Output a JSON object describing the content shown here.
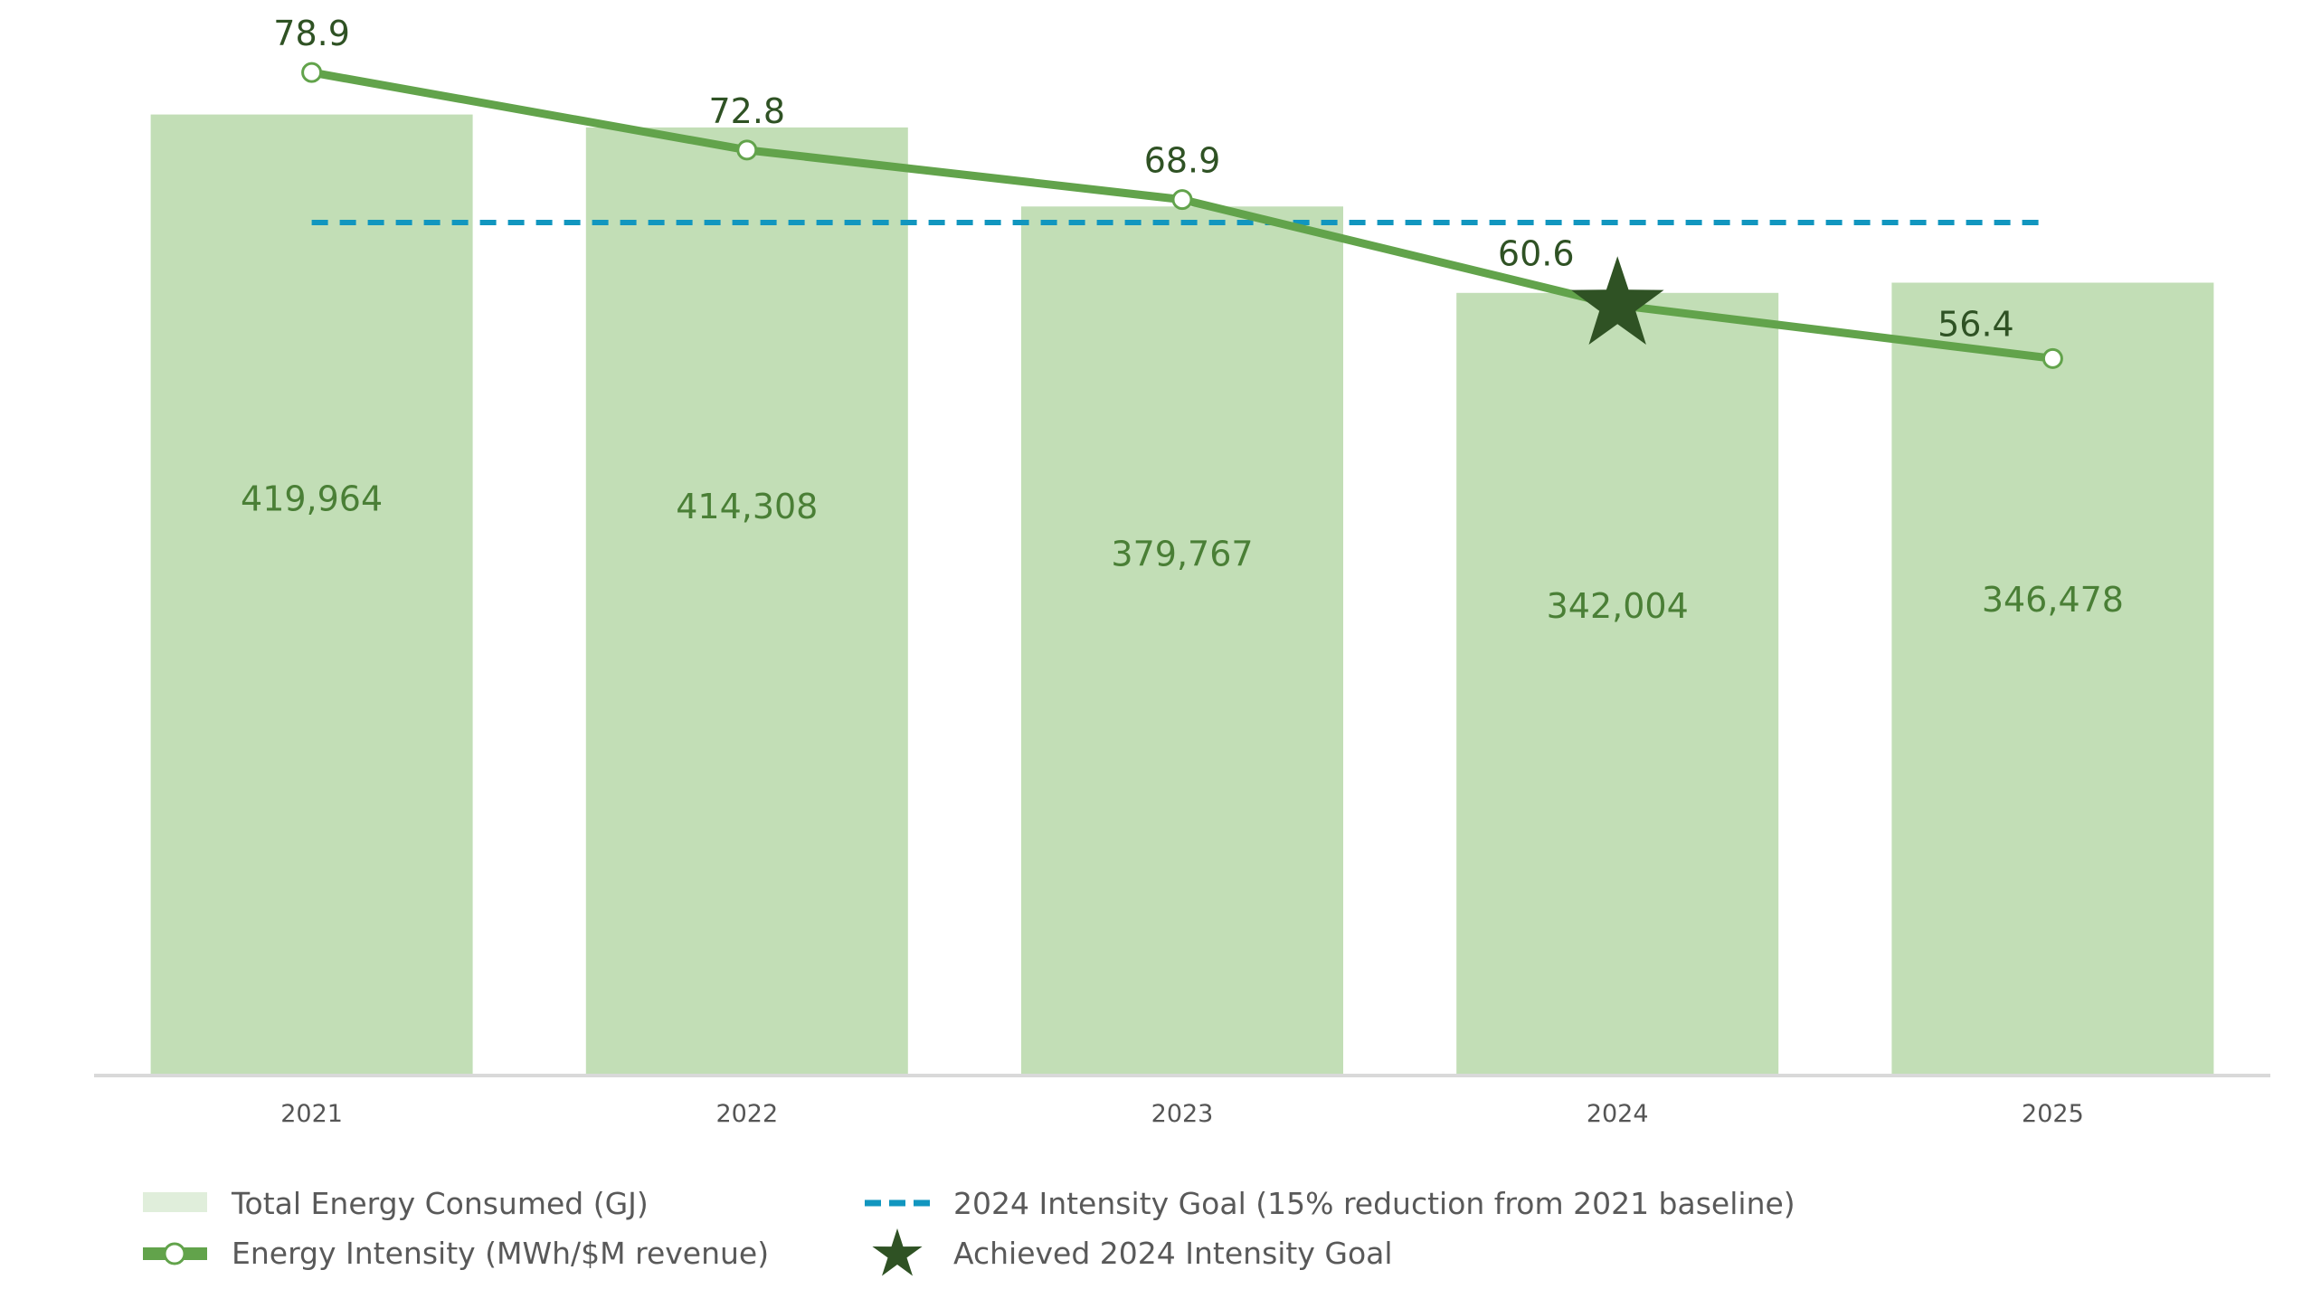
{
  "chart_data": {
    "type": "bar",
    "title": "",
    "xlabel": "",
    "ylabel": "",
    "categories": [
      "2021",
      "2022",
      "2023",
      "2024",
      "2025"
    ],
    "series": [
      {
        "name": "Total Energy Consumed (GJ)",
        "kind": "bar",
        "values": [
          419964,
          414308,
          379767,
          342004,
          346478
        ],
        "labels": [
          "419,964",
          "414,308",
          "379,767",
          "342,004",
          "346,478"
        ],
        "color": "#c2deb6"
      },
      {
        "name": "Energy Intensity (MWh/$M revenue)",
        "kind": "line",
        "values": [
          78.9,
          72.8,
          68.9,
          60.6,
          56.4
        ],
        "labels": [
          "78.9",
          "72.8",
          "68.9",
          "60.6",
          "56.4"
        ],
        "color": "#62a34b"
      },
      {
        "name": "2024 Intensity Goal (15% reduction from 2021 baseline)",
        "kind": "reference-line",
        "value": 67.1,
        "color": "#1196bf"
      },
      {
        "name": "Achieved 2024 Intensity Goal",
        "kind": "marker",
        "category": "2024",
        "value": 60.6,
        "color": "#2f5224"
      }
    ],
    "ylim_bar": [
      0,
      470000
    ],
    "ylim_line": [
      0,
      84.6
    ],
    "grid": false,
    "legend": "bottom-left"
  }
}
